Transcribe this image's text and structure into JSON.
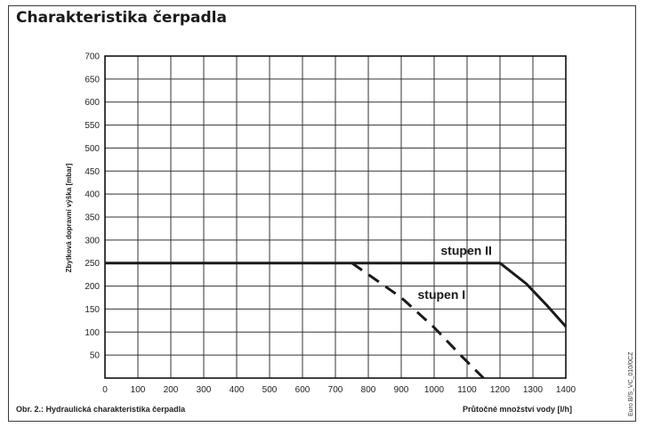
{
  "chart_data": {
    "type": "line",
    "title": "Charakteristika čerpadla",
    "caption": "Obr. 2.: Hydraulická charakteristika čerpadla",
    "xlabel": "Průtočné množství vody [l/h]",
    "ylabel": "Zbytková dopravní výška [mbar]",
    "side_reference": "Euro B/S_VC_010/0CZ",
    "xlim": [
      0,
      1400
    ],
    "ylim": [
      0,
      700
    ],
    "x_ticks": [
      0,
      100,
      200,
      300,
      400,
      500,
      600,
      700,
      800,
      900,
      1000,
      1100,
      1200,
      1300,
      1400
    ],
    "y_ticks": [
      50,
      100,
      150,
      200,
      250,
      300,
      350,
      400,
      450,
      500,
      550,
      600,
      650,
      700
    ],
    "grid": true,
    "series": [
      {
        "name": "stupen II",
        "style": "solid",
        "points": [
          [
            0,
            250
          ],
          [
            1200,
            250
          ],
          [
            1280,
            205
          ],
          [
            1340,
            160
          ],
          [
            1400,
            112
          ]
        ]
      },
      {
        "name": "stupen I",
        "style": "dashed",
        "points": [
          [
            750,
            250
          ],
          [
            800,
            225
          ],
          [
            900,
            175
          ],
          [
            1000,
            110
          ],
          [
            1080,
            50
          ],
          [
            1150,
            0
          ]
        ]
      }
    ],
    "annotations": [
      {
        "text": "stupen II",
        "x": 1020,
        "y": 268
      },
      {
        "text": "stupen I",
        "x": 950,
        "y": 172
      }
    ]
  }
}
